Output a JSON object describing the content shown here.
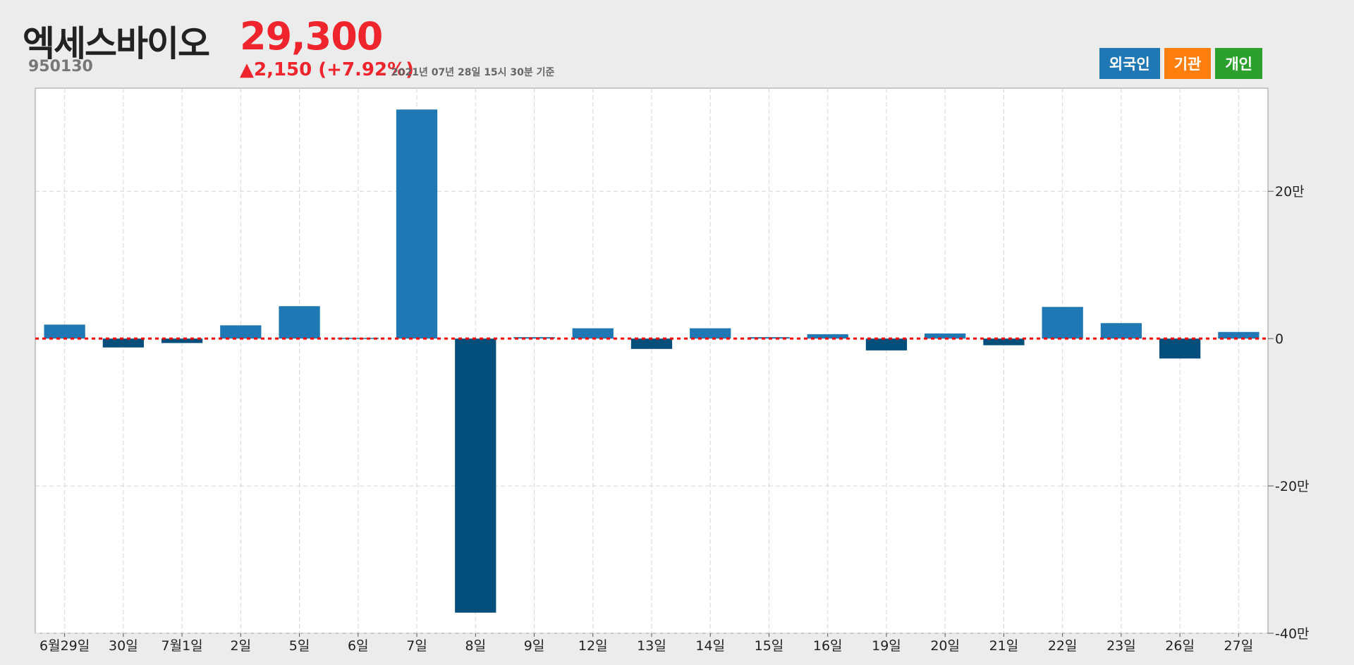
{
  "header": {
    "stock_name": "엑세스바이오",
    "stock_code": "950130",
    "price": "29,300",
    "change": "▲2,150 (+7.92%)",
    "as_of": "2021년 07년 28일 15시 30분 기준"
  },
  "tabs": [
    {
      "label": "외국인",
      "color": "#1f77b4"
    },
    {
      "label": "기관",
      "color": "#ff7f0e"
    },
    {
      "label": "개인",
      "color": "#2ca02c"
    }
  ],
  "colors": {
    "positive": "#1f77b4",
    "negative": "#034e7b",
    "zero_line": "#ff0000"
  },
  "chart_data": {
    "type": "bar",
    "series_selected": "외국인",
    "categories": [
      "6월29일",
      "30일",
      "7월1일",
      "2일",
      "5일",
      "6일",
      "7일",
      "8일",
      "9일",
      "12일",
      "13일",
      "14일",
      "15일",
      "16일",
      "19일",
      "20일",
      "21일",
      "22일",
      "23일",
      "26일",
      "27일"
    ],
    "values": [
      19000,
      -12000,
      -6000,
      18000,
      44000,
      1000,
      311000,
      -372000,
      2000,
      14000,
      -14000,
      14000,
      2000,
      6000,
      -16000,
      7000,
      -9000,
      43000,
      21000,
      -27000,
      9000
    ],
    "ylim": [
      -400000,
      340000
    ],
    "yticks": [
      {
        "value": 200000,
        "label": "20만"
      },
      {
        "value": 0,
        "label": "0"
      },
      {
        "value": -200000,
        "label": "-20만"
      },
      {
        "value": -400000,
        "label": "-40만"
      }
    ],
    "grid": true,
    "y_axis_position": "right"
  }
}
